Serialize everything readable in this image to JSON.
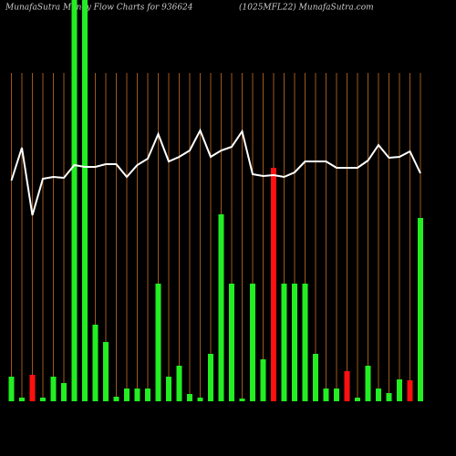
{
  "chart_data": {
    "type": "bar",
    "title": "MunafaSutra  Money Flow  Charts for 936624",
    "subtitle": "(1025MFL22) MunafaSutra.com",
    "categories": [
      null,
      null,
      null,
      null,
      null,
      null,
      null,
      null,
      null,
      null,
      null,
      null,
      null,
      null,
      null,
      null,
      null,
      null,
      null,
      null,
      null,
      null,
      null,
      null,
      null,
      null,
      null,
      null,
      null,
      null,
      null,
      null,
      null,
      null,
      null,
      null,
      null,
      null,
      null,
      null
    ],
    "ylim": [
      0,
      440
    ],
    "grid_color": "#a0581a",
    "series": [
      {
        "type": "bar",
        "values": [
          27,
          4,
          29,
          4,
          27,
          20,
          440,
          440,
          84,
          65,
          5,
          14,
          14,
          14,
          129,
          27,
          39,
          8,
          4,
          52,
          205,
          129,
          3,
          129,
          46,
          256,
          129,
          129,
          129,
          52,
          14,
          14,
          33,
          4,
          39,
          14,
          9,
          24,
          23,
          201
        ],
        "colors": [
          "#22ee22",
          "#22ee22",
          "#ff1010",
          "#22ee22",
          "#22ee22",
          "#22ee22",
          "#22ee22",
          "#22ee22",
          "#22ee22",
          "#22ee22",
          "#22ee22",
          "#22ee22",
          "#22ee22",
          "#22ee22",
          "#22ee22",
          "#22ee22",
          "#22ee22",
          "#22ee22",
          "#22ee22",
          "#22ee22",
          "#22ee22",
          "#22ee22",
          "#22ee22",
          "#22ee22",
          "#22ee22",
          "#ff1010",
          "#22ee22",
          "#22ee22",
          "#22ee22",
          "#22ee22",
          "#22ee22",
          "#22ee22",
          "#ff1010",
          "#22ee22",
          "#22ee22",
          "#22ee22",
          "#22ee22",
          "#22ee22",
          "#ff1010",
          "#22ee22"
        ]
      },
      {
        "type": "line",
        "color": "#ffffff",
        "values": [
          242,
          278,
          204,
          244,
          246,
          245,
          259,
          257,
          257,
          260,
          260,
          246,
          259,
          266,
          293,
          263,
          268,
          275,
          297,
          268,
          275,
          279,
          296,
          249,
          247,
          248,
          246,
          251,
          263,
          263,
          263,
          256,
          256,
          256,
          264,
          281,
          267,
          268,
          274,
          250
        ]
      }
    ]
  }
}
